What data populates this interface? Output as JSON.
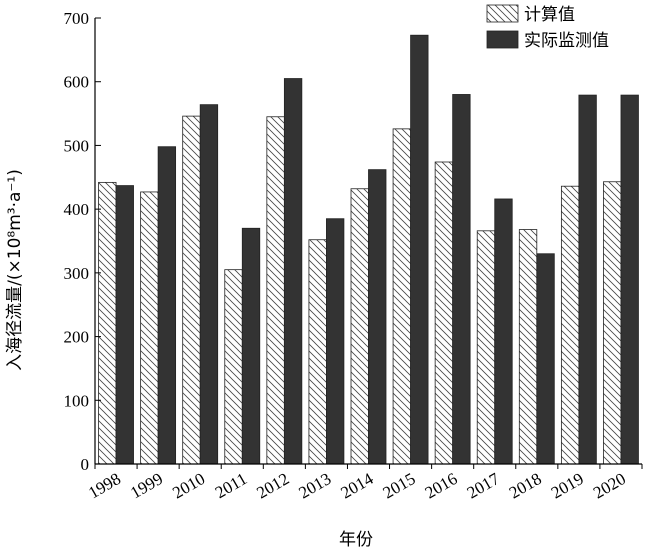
{
  "chart_data": {
    "type": "bar",
    "xlabel": "年份",
    "ylabel": "入海径流量/(×10⁸m³·a⁻¹)",
    "ylim": [
      0,
      700
    ],
    "yticks": [
      0,
      100,
      200,
      300,
      400,
      500,
      600,
      700
    ],
    "grid": false,
    "legend_position": "top-right",
    "categories": [
      "1998",
      "1999",
      "2010",
      "2011",
      "2012",
      "2013",
      "2014",
      "2015",
      "2016",
      "2017",
      "2018",
      "2019",
      "2020"
    ],
    "series": [
      {
        "name": "计算值",
        "pattern": "hatched",
        "color": "#ffffff",
        "values": [
          442,
          427,
          546,
          305,
          545,
          352,
          432,
          526,
          474,
          366,
          368,
          436,
          443
        ]
      },
      {
        "name": "实际监测值",
        "pattern": "solid",
        "color": "#333333",
        "values": [
          437,
          498,
          564,
          370,
          605,
          385,
          462,
          673,
          580,
          416,
          330,
          579,
          579
        ]
      }
    ]
  }
}
